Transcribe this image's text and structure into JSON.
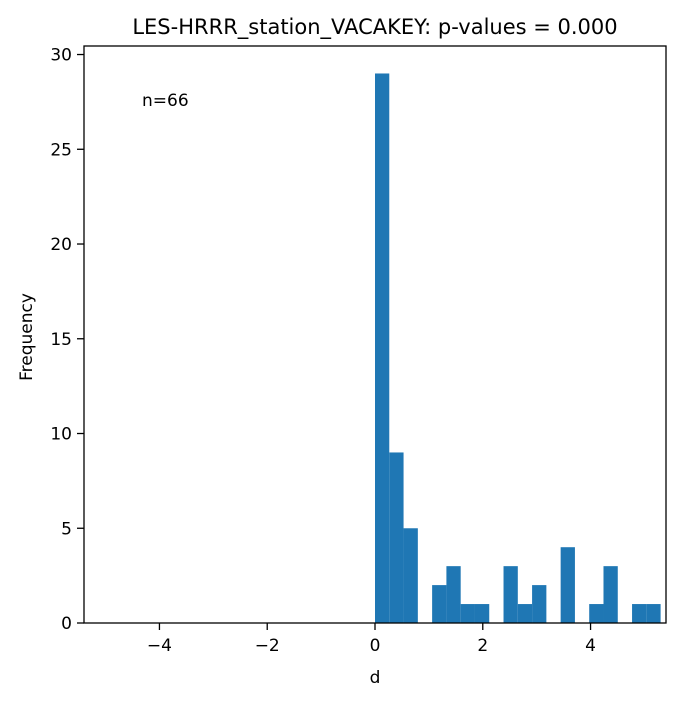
{
  "chart_data": {
    "type": "bar",
    "title": "LES-HRRR_station_VACAKEY: p-values = 0.000",
    "xlabel": "d",
    "ylabel": "Frequency",
    "annotation": "n=66",
    "xlim": [
      -5.4,
      5.4
    ],
    "ylim": [
      0,
      30.45
    ],
    "xticks": [
      -4,
      -2,
      0,
      2,
      4
    ],
    "xtick_labels": [
      "−4",
      "−2",
      "0",
      "2",
      "4"
    ],
    "yticks": [
      0,
      5,
      10,
      15,
      20,
      25,
      30
    ],
    "ytick_labels": [
      "0",
      "5",
      "10",
      "15",
      "20",
      "25",
      "30"
    ],
    "grid": false,
    "bar_color": "#1f77b4",
    "bin_width": 0.265,
    "bins": [
      {
        "x0": 0.0,
        "count": 29
      },
      {
        "x0": 0.265,
        "count": 9
      },
      {
        "x0": 0.53,
        "count": 5
      },
      {
        "x0": 0.795,
        "count": 0
      },
      {
        "x0": 1.06,
        "count": 2
      },
      {
        "x0": 1.325,
        "count": 3
      },
      {
        "x0": 1.59,
        "count": 1
      },
      {
        "x0": 1.855,
        "count": 1
      },
      {
        "x0": 2.12,
        "count": 0
      },
      {
        "x0": 2.385,
        "count": 3
      },
      {
        "x0": 2.65,
        "count": 1
      },
      {
        "x0": 2.915,
        "count": 2
      },
      {
        "x0": 3.18,
        "count": 0
      },
      {
        "x0": 3.445,
        "count": 4
      },
      {
        "x0": 3.71,
        "count": 0
      },
      {
        "x0": 3.975,
        "count": 1
      },
      {
        "x0": 4.24,
        "count": 3
      },
      {
        "x0": 4.505,
        "count": 0
      },
      {
        "x0": 4.77,
        "count": 1
      },
      {
        "x0": 5.035,
        "count": 1
      }
    ]
  }
}
